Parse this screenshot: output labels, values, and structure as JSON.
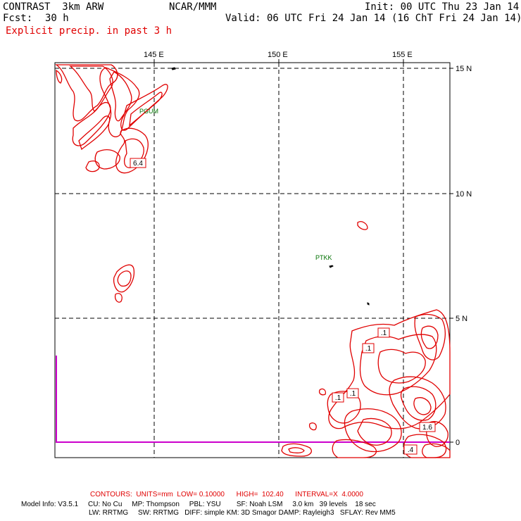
{
  "header": {
    "model": "CONTRAST  3km ARW",
    "center": "NCAR/MMM",
    "init": "Init: 00 UTC Thu 23 Jan 14",
    "fcst_label": "Fcst:",
    "fcst_value": "30 h",
    "valid": "Valid: 06 UTC Fri 24 Jan 14 (16 ChT Fri 24 Jan 14)",
    "field": "Explicit precip. in past 3 h"
  },
  "axes": {
    "lon_labels": [
      "145 E",
      "150 E",
      "155 E"
    ],
    "lat_labels": [
      "15 N",
      "10 N",
      "5 N",
      "0"
    ]
  },
  "stations": [
    {
      "id": "PGUM"
    },
    {
      "id": "PTKK"
    }
  ],
  "contour_labels": [
    "6.4",
    ".1",
    ".1",
    ".1",
    ".1",
    "1.6",
    ".4"
  ],
  "footer": {
    "contours_line": "CONTOURS:  UNITS=mm  LOW= 0.10000      HIGH=  102.40      INTERVAL=X  4.0000",
    "model_info_1": "Model Info: V3.5.1     CU: No Cu     MP: Thompson     PBL: YSU        SF: Noah LSM     3.0 km   39 levels    18 sec",
    "model_info_2": "LW: RRTMG     SW: RRTMG   DIFF: simple KM: 3D Smagor DAMP: Rayleigh3   SFLAY: Rev MM5"
  },
  "colors": {
    "precip_contour": "#e00000",
    "station_label": "#007000",
    "boundary": "#cc00cc",
    "grid": "#000000"
  }
}
